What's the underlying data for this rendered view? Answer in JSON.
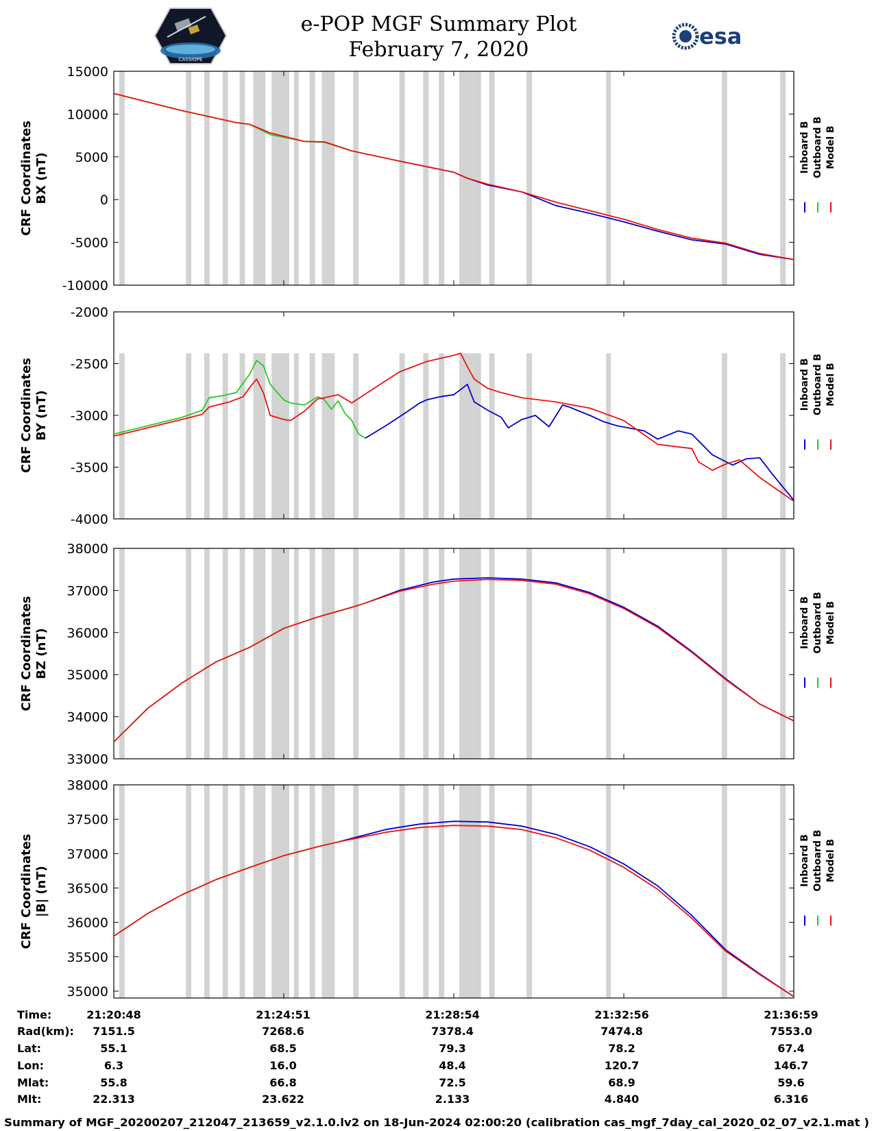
{
  "header": {
    "title": "e-POP MGF Summary Plot",
    "date": "February 7, 2020",
    "logo_left_text": "CASSIOPE",
    "logo_right_text": "esa"
  },
  "colors": {
    "inboard": "#0000cc",
    "outboard": "#22cc22",
    "model": "#ee1111",
    "gap": "#d3d3d3"
  },
  "legend": [
    "Inboard B",
    "Outboard B",
    "Model B"
  ],
  "x_axis": {
    "range": [
      0,
      1
    ]
  },
  "gaps": [
    [
      0.008,
      0.016
    ],
    [
      0.106,
      0.114
    ],
    [
      0.133,
      0.141
    ],
    [
      0.16,
      0.168
    ],
    [
      0.185,
      0.193
    ],
    [
      0.205,
      0.223
    ],
    [
      0.232,
      0.258
    ],
    [
      0.265,
      0.272
    ],
    [
      0.288,
      0.296
    ],
    [
      0.306,
      0.325
    ],
    [
      0.352,
      0.36
    ],
    [
      0.42,
      0.428
    ],
    [
      0.455,
      0.463
    ],
    [
      0.478,
      0.486
    ],
    [
      0.508,
      0.528
    ],
    [
      0.528,
      0.54
    ],
    [
      0.552,
      0.56
    ],
    [
      0.607,
      0.615
    ],
    [
      0.724,
      0.731
    ],
    [
      0.894,
      0.902
    ],
    [
      0.98,
      0.988
    ]
  ],
  "chart_data": [
    {
      "type": "line",
      "ylabel_1": "CRF Coordinates",
      "ylabel_2": "BX (nT)",
      "ylim": [
        -10000,
        15000
      ],
      "yticks": [
        15000,
        10000,
        5000,
        0,
        -5000,
        -10000
      ],
      "ytick_labels": [
        "15000",
        "10000",
        "5000",
        "0",
        "-5000",
        "-10000"
      ],
      "shade_ymax": 15000,
      "series": [
        {
          "name": "Outboard B",
          "color": "outboard",
          "x": [
            0,
            0.1,
            0.18,
            0.2,
            0.23,
            0.28,
            0.31,
            0.35,
            0.42
          ],
          "y": [
            12400,
            10400,
            9000,
            8800,
            7600,
            6800,
            6700,
            5700,
            4500
          ]
        },
        {
          "name": "Inboard B",
          "color": "inboard",
          "x": [
            0.42,
            0.5,
            0.52,
            0.55,
            0.6,
            0.65,
            0.7,
            0.75,
            0.8,
            0.85,
            0.9,
            0.95,
            1.0
          ],
          "y": [
            4500,
            3200,
            2500,
            1700,
            900,
            -700,
            -1600,
            -2600,
            -3700,
            -4700,
            -5200,
            -6400,
            -7000
          ]
        },
        {
          "name": "Model B",
          "color": "model",
          "x": [
            0,
            0.1,
            0.18,
            0.2,
            0.23,
            0.28,
            0.31,
            0.35,
            0.42,
            0.5,
            0.52,
            0.55,
            0.6,
            0.65,
            0.7,
            0.75,
            0.8,
            0.85,
            0.9,
            0.95,
            1.0
          ],
          "y": [
            12400,
            10400,
            9000,
            8800,
            7800,
            6800,
            6750,
            5700,
            4500,
            3200,
            2500,
            1800,
            900,
            -300,
            -1300,
            -2300,
            -3500,
            -4500,
            -5100,
            -6300,
            -7000
          ]
        }
      ]
    },
    {
      "type": "line",
      "ylabel_1": "CRF Coordinates",
      "ylabel_2": "BY (nT)",
      "ylim": [
        -4000,
        -2000
      ],
      "yticks": [
        -2000,
        -2500,
        -3000,
        -3500,
        -4000
      ],
      "ytick_labels": [
        "-2000",
        "-2500",
        "-3000",
        "-3500",
        "-4000"
      ],
      "shade_ymax": -2400,
      "series": [
        {
          "name": "Outboard B",
          "color": "outboard",
          "x": [
            0,
            0.05,
            0.1,
            0.13,
            0.14,
            0.16,
            0.18,
            0.2,
            0.21,
            0.22,
            0.23,
            0.25,
            0.26,
            0.28,
            0.3,
            0.31,
            0.32,
            0.33,
            0.34,
            0.35,
            0.36,
            0.37
          ],
          "y": [
            -3180,
            -3100,
            -3020,
            -2950,
            -2830,
            -2810,
            -2780,
            -2600,
            -2470,
            -2520,
            -2700,
            -2850,
            -2880,
            -2900,
            -2820,
            -2850,
            -2940,
            -2860,
            -2980,
            -3050,
            -3180,
            -3220
          ]
        },
        {
          "name": "Inboard B",
          "color": "inboard",
          "x": [
            0.37,
            0.4,
            0.43,
            0.45,
            0.46,
            0.48,
            0.5,
            0.51,
            0.52,
            0.53,
            0.55,
            0.57,
            0.58,
            0.6,
            0.62,
            0.64,
            0.66,
            0.67,
            0.7,
            0.72,
            0.74,
            0.78,
            0.8,
            0.83,
            0.85,
            0.88,
            0.91,
            0.93,
            0.95,
            0.97,
            1.0
          ],
          "y": [
            -3220,
            -3100,
            -2970,
            -2880,
            -2850,
            -2820,
            -2800,
            -2750,
            -2700,
            -2870,
            -2950,
            -3020,
            -3120,
            -3040,
            -3000,
            -3110,
            -2900,
            -2920,
            -3000,
            -3060,
            -3100,
            -3150,
            -3230,
            -3150,
            -3180,
            -3380,
            -3480,
            -3420,
            -3410,
            -3580,
            -3820
          ]
        },
        {
          "name": "Model B",
          "color": "model",
          "x": [
            0,
            0.05,
            0.1,
            0.13,
            0.14,
            0.17,
            0.19,
            0.2,
            0.21,
            0.22,
            0.23,
            0.25,
            0.26,
            0.28,
            0.3,
            0.31,
            0.33,
            0.35,
            0.38,
            0.42,
            0.46,
            0.5,
            0.51,
            0.52,
            0.53,
            0.55,
            0.57,
            0.6,
            0.65,
            0.7,
            0.75,
            0.8,
            0.85,
            0.86,
            0.88,
            0.9,
            0.92,
            0.95,
            1.0
          ],
          "y": [
            -3200,
            -3120,
            -3040,
            -2990,
            -2920,
            -2870,
            -2820,
            -2730,
            -2650,
            -2780,
            -3000,
            -3040,
            -3050,
            -2960,
            -2840,
            -2830,
            -2800,
            -2880,
            -2750,
            -2580,
            -2480,
            -2420,
            -2400,
            -2530,
            -2650,
            -2740,
            -2780,
            -2830,
            -2870,
            -2930,
            -3050,
            -3280,
            -3320,
            -3450,
            -3530,
            -3470,
            -3430,
            -3600,
            -3830
          ]
        }
      ]
    },
    {
      "type": "line",
      "ylabel_1": "CRF Coordinates",
      "ylabel_2": "BZ (nT)",
      "ylim": [
        33000,
        38000
      ],
      "yticks": [
        38000,
        37000,
        36000,
        35000,
        34000,
        33000
      ],
      "ytick_labels": [
        "38000",
        "37000",
        "36000",
        "35000",
        "34000",
        "33000"
      ],
      "shade_ymax": 38000,
      "series": [
        {
          "name": "Outboard B",
          "color": "outboard",
          "x": [
            0,
            0.05,
            0.1,
            0.15,
            0.2,
            0.25,
            0.3,
            0.35,
            0.37
          ],
          "y": [
            33400,
            34200,
            34800,
            35300,
            35650,
            36100,
            36370,
            36600,
            36700
          ]
        },
        {
          "name": "Inboard B",
          "color": "inboard",
          "x": [
            0.37,
            0.42,
            0.47,
            0.5,
            0.55,
            0.6,
            0.65,
            0.7,
            0.75,
            0.8,
            0.85,
            0.9,
            0.95,
            1.0
          ],
          "y": [
            36700,
            37000,
            37200,
            37270,
            37300,
            37270,
            37180,
            36950,
            36600,
            36150,
            35550,
            34900,
            34300,
            33900
          ]
        },
        {
          "name": "Model B",
          "color": "model",
          "x": [
            0,
            0.05,
            0.1,
            0.15,
            0.2,
            0.25,
            0.3,
            0.35,
            0.37,
            0.42,
            0.47,
            0.5,
            0.55,
            0.6,
            0.65,
            0.7,
            0.75,
            0.8,
            0.85,
            0.9,
            0.95,
            1.0
          ],
          "y": [
            33400,
            34200,
            34800,
            35300,
            35650,
            36100,
            36370,
            36600,
            36700,
            36980,
            37150,
            37220,
            37260,
            37240,
            37150,
            36920,
            36570,
            36120,
            35530,
            34880,
            34300,
            33900
          ]
        }
      ]
    },
    {
      "type": "line",
      "ylabel_1": "CRF Coordinates",
      "ylabel_2": "|B| (nT)",
      "ylim": [
        34900,
        38000
      ],
      "yticks": [
        38000,
        37500,
        37000,
        36500,
        36000,
        35500,
        35000
      ],
      "ytick_labels": [
        "38000",
        "37500",
        "37000",
        "36500",
        "36000",
        "35500",
        "35000"
      ],
      "shade_ymax": 38000,
      "series": [
        {
          "name": "Outboard B",
          "color": "outboard",
          "x": [
            0,
            0.05,
            0.1,
            0.15,
            0.2,
            0.25,
            0.3,
            0.33
          ],
          "y": [
            35800,
            36130,
            36400,
            36620,
            36800,
            36970,
            37100,
            37170
          ]
        },
        {
          "name": "Inboard B",
          "color": "inboard",
          "x": [
            0.33,
            0.4,
            0.45,
            0.5,
            0.55,
            0.6,
            0.65,
            0.7,
            0.75,
            0.8,
            0.85,
            0.9,
            0.95,
            1.0
          ],
          "y": [
            37170,
            37350,
            37430,
            37470,
            37460,
            37400,
            37280,
            37100,
            36850,
            36530,
            36100,
            35600,
            35250,
            34920
          ]
        },
        {
          "name": "Model B",
          "color": "model",
          "x": [
            0,
            0.05,
            0.1,
            0.15,
            0.2,
            0.25,
            0.3,
            0.33,
            0.4,
            0.45,
            0.5,
            0.55,
            0.6,
            0.65,
            0.7,
            0.75,
            0.8,
            0.85,
            0.9,
            0.95,
            1.0
          ],
          "y": [
            35800,
            36130,
            36400,
            36620,
            36800,
            36970,
            37100,
            37170,
            37310,
            37380,
            37410,
            37400,
            37350,
            37230,
            37050,
            36800,
            36480,
            36060,
            35580,
            35240,
            34920
          ]
        }
      ]
    }
  ],
  "orbit_table": {
    "row_labels": [
      "Time:",
      "Rad(km):",
      "Lat:",
      "Lon:",
      "Mlat:",
      "Mlt:"
    ],
    "columns": [
      [
        "21:20:48",
        "7151.5",
        "55.1",
        "6.3",
        "55.8",
        "22.313"
      ],
      [
        "21:24:51",
        "7268.6",
        "68.5",
        "16.0",
        "66.8",
        "23.622"
      ],
      [
        "21:28:54",
        "7378.4",
        "79.3",
        "48.4",
        "72.5",
        "2.133"
      ],
      [
        "21:32:56",
        "7474.8",
        "78.2",
        "120.7",
        "68.9",
        "4.840"
      ],
      [
        "21:36:59",
        "7553.0",
        "67.4",
        "146.7",
        "59.6",
        "6.316"
      ]
    ]
  },
  "footer": "Summary of MGF_20200207_212047_213659_v2.1.0.lv2 on 18-Jun-2024 02:00:20 (calibration cas_mgf_7day_cal_2020_02_07_v2.1.mat )"
}
